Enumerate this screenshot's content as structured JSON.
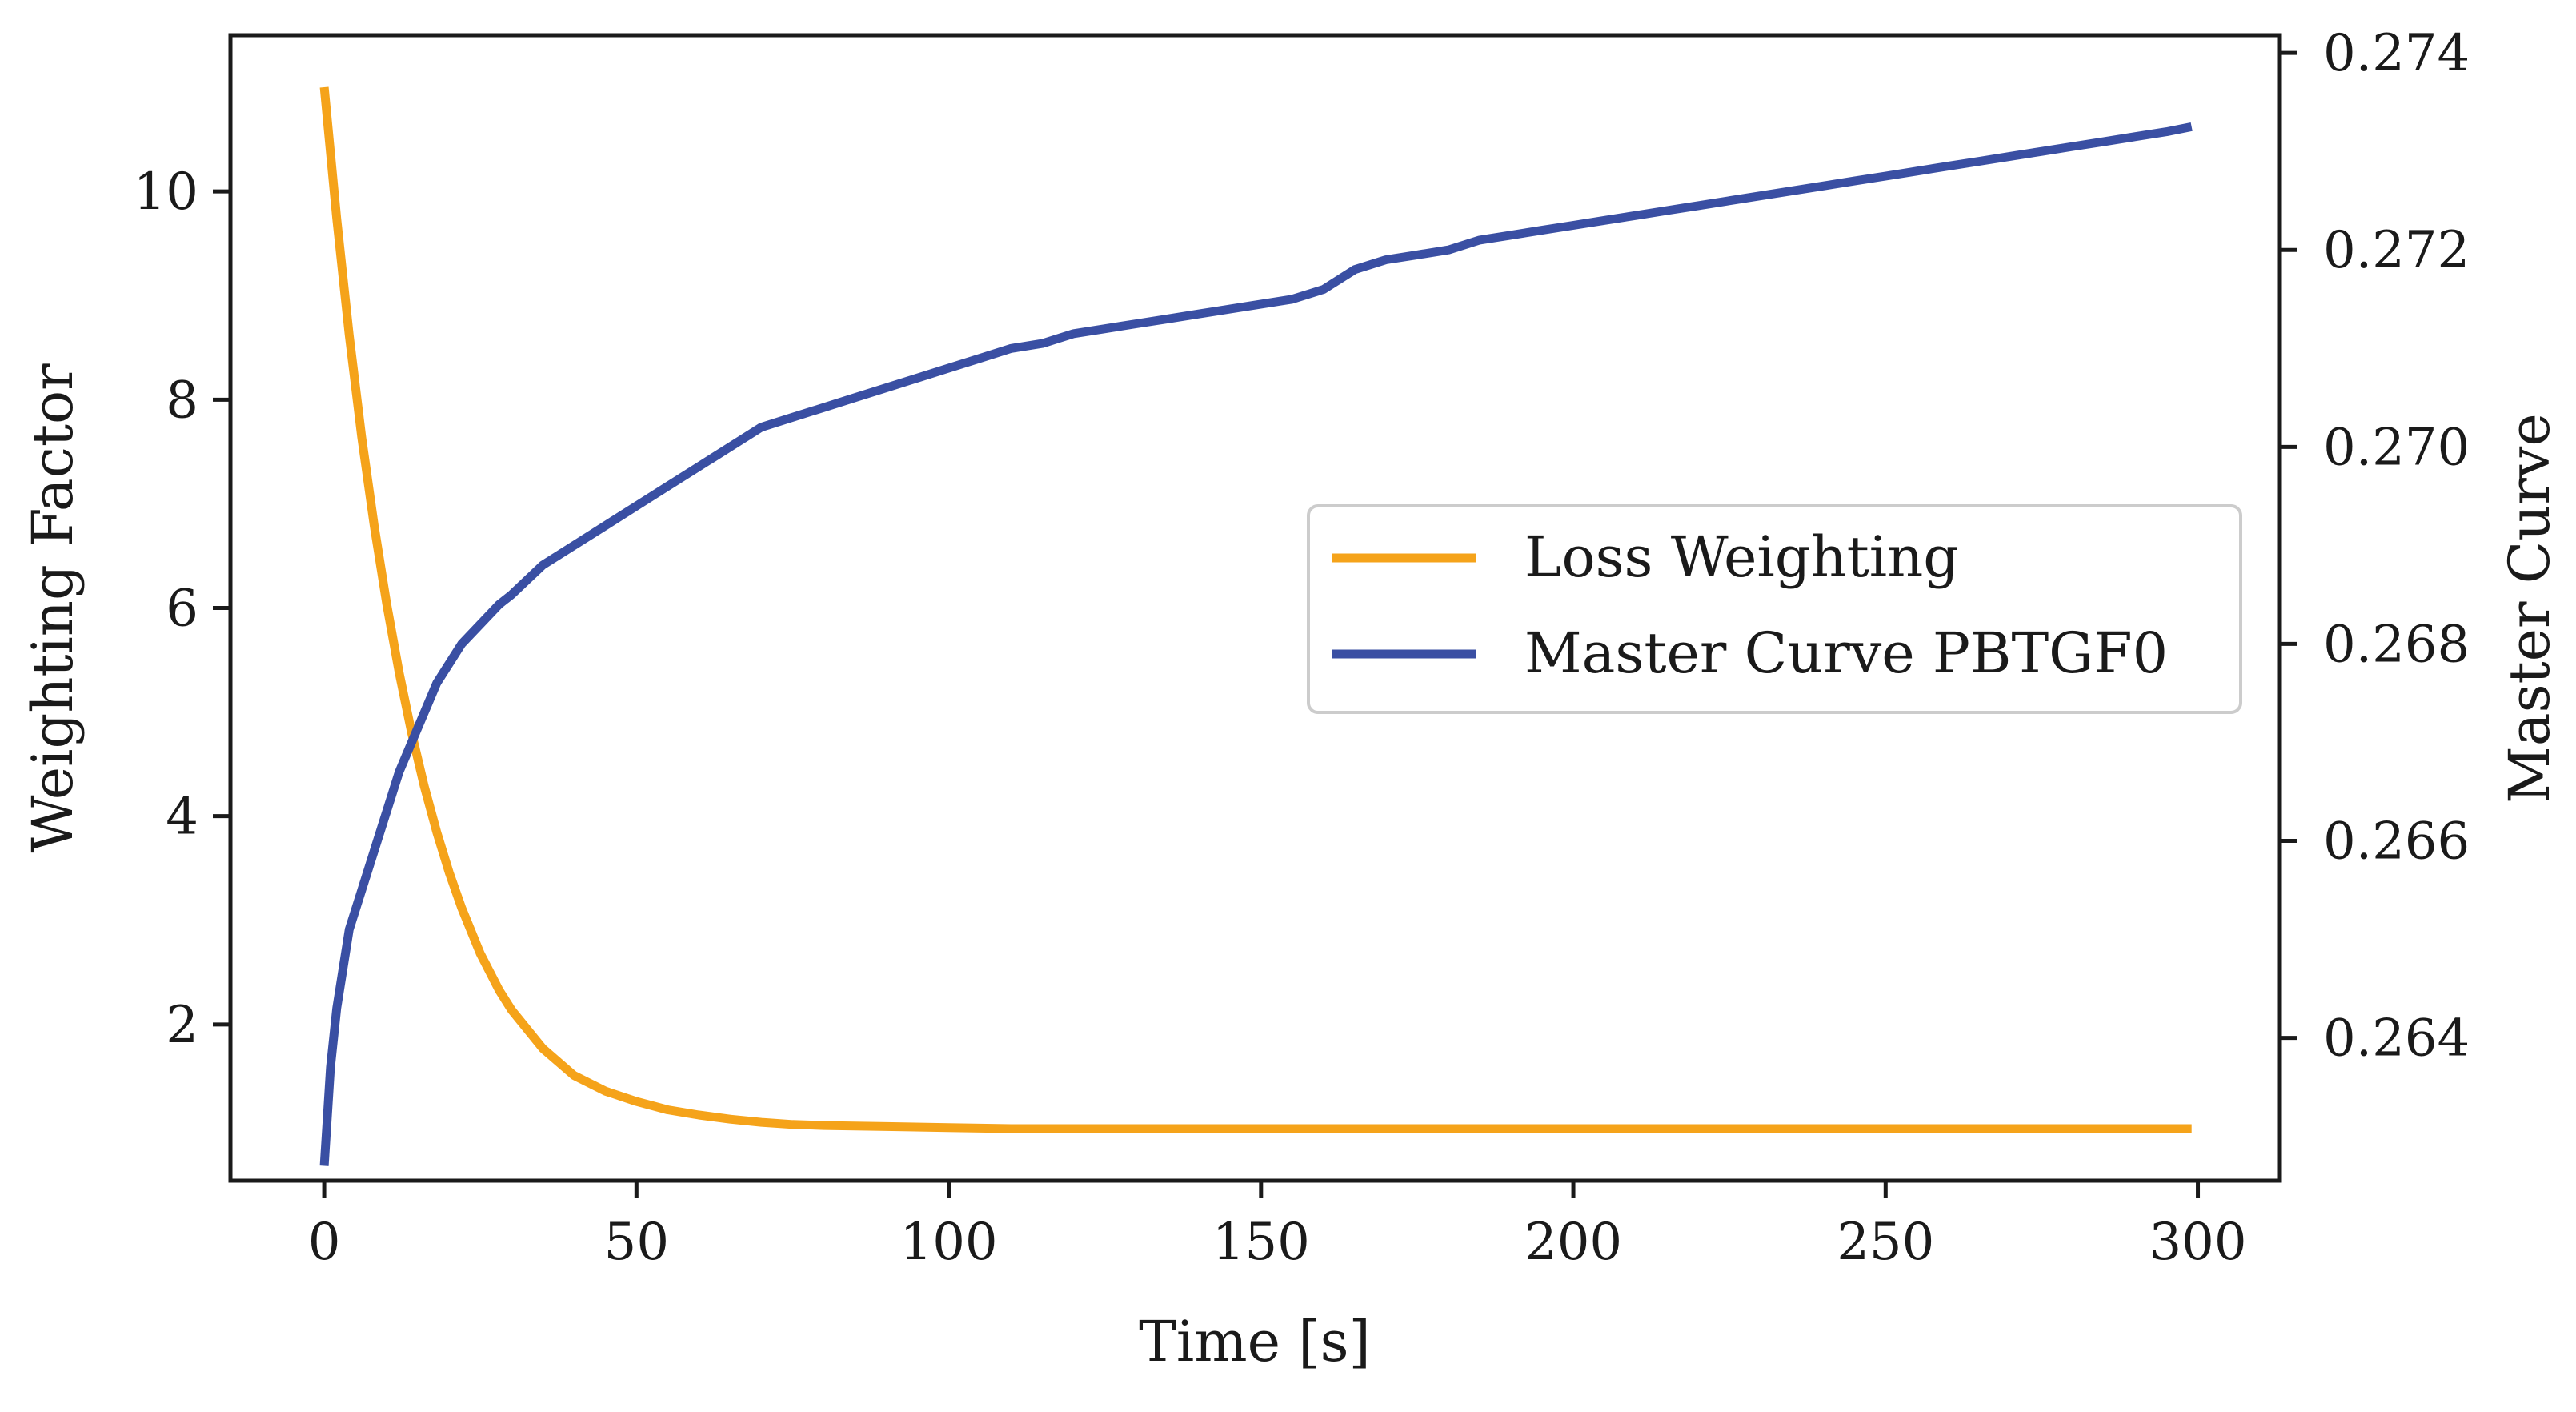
{
  "chart_data": {
    "type": "line",
    "title": "",
    "xlabel": "Time [s]",
    "ylabel": "Weighting Factor",
    "y2label": "Master Curve",
    "xlim": [
      -15,
      313
    ],
    "ylim": [
      0.5,
      11.5
    ],
    "y2lim": [
      0.26255,
      0.27418
    ],
    "xticks": [
      0,
      50,
      100,
      150,
      200,
      250,
      300
    ],
    "yticks": [
      2,
      4,
      6,
      8,
      10
    ],
    "y2ticks": [
      0.264,
      0.266,
      0.268,
      0.27,
      0.272,
      0.274
    ],
    "y2tick_labels": [
      "0.264",
      "0.266",
      "0.268",
      "0.270",
      "0.272",
      "0.274"
    ],
    "legend_position": "center-right",
    "grid": false,
    "series": [
      {
        "name": "Loss Weighting",
        "axis": "left",
        "color": "#F5A31A",
        "x": [
          0,
          2,
          4,
          6,
          8,
          10,
          12,
          14,
          16,
          18,
          20,
          22,
          25,
          28,
          30,
          35,
          40,
          45,
          50,
          55,
          60,
          65,
          70,
          75,
          80,
          90,
          100,
          110,
          120,
          140,
          160,
          200,
          250,
          299
        ],
        "values": [
          11.0,
          9.74,
          8.62,
          7.64,
          6.79,
          6.04,
          5.38,
          4.8,
          4.29,
          3.85,
          3.46,
          3.12,
          2.68,
          2.33,
          2.14,
          1.77,
          1.51,
          1.36,
          1.26,
          1.18,
          1.13,
          1.09,
          1.06,
          1.04,
          1.03,
          1.02,
          1.01,
          1.0,
          1.0,
          1.0,
          1.0,
          1.0,
          1.0,
          1.0
        ]
      },
      {
        "name": "Master Curve PBTGF0",
        "axis": "right",
        "color": "#3A4FA3",
        "x": [
          0,
          1,
          2,
          3,
          4,
          5,
          6,
          8,
          10,
          12,
          14,
          16,
          18,
          20,
          22,
          25,
          28,
          30,
          35,
          40,
          45,
          50,
          55,
          60,
          65,
          70,
          75,
          80,
          85,
          90,
          95,
          100,
          105,
          110,
          115,
          120,
          125,
          130,
          135,
          140,
          145,
          150,
          155,
          160,
          165,
          170,
          175,
          180,
          185,
          190,
          195,
          200,
          205,
          210,
          215,
          220,
          225,
          230,
          235,
          240,
          245,
          250,
          255,
          260,
          265,
          270,
          275,
          280,
          285,
          290,
          295,
          299
        ],
        "values": [
          0.2627,
          0.2637,
          0.2643,
          0.2647,
          0.2651,
          0.2653,
          0.2655,
          0.2659,
          0.2663,
          0.2667,
          0.267,
          0.2673,
          0.2676,
          0.2678,
          0.268,
          0.2682,
          0.2684,
          0.2685,
          0.2688,
          0.269,
          0.2692,
          0.2694,
          0.2696,
          0.2698,
          0.27,
          0.2702,
          0.2703,
          0.2704,
          0.2705,
          0.2706,
          0.2707,
          0.2708,
          0.2709,
          0.271,
          0.27105,
          0.27115,
          0.2712,
          0.27125,
          0.2713,
          0.27135,
          0.2714,
          0.27145,
          0.2715,
          0.2716,
          0.2718,
          0.2719,
          0.27195,
          0.272,
          0.2721,
          0.27215,
          0.2722,
          0.27225,
          0.2723,
          0.27235,
          0.2724,
          0.27245,
          0.2725,
          0.27255,
          0.2726,
          0.27265,
          0.2727,
          0.27275,
          0.2728,
          0.27285,
          0.2729,
          0.27295,
          0.273,
          0.27305,
          0.2731,
          0.27315,
          0.2732,
          0.27325
        ]
      }
    ]
  }
}
